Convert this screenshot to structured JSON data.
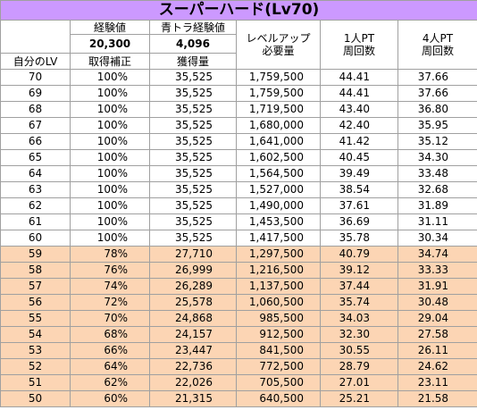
{
  "table": {
    "title": "スーパーハード(Lv70)",
    "header": {
      "exp": "経験値",
      "exp_value": "20,300",
      "blue_exp": "青トラ経験値",
      "blue_exp_value": "4,096",
      "levelup": "レベルアップ\n必要量",
      "solo": "1人PT\n周回数",
      "party": "4人PT\n周回数",
      "my_lv": "自分のLV",
      "bonus": "取得補正",
      "gain": "獲得量"
    },
    "bands": [
      {
        "rows": [
          [
            "70",
            "100%",
            "35,525",
            "1,759,500",
            "44.41",
            "37.66"
          ],
          [
            "69",
            "100%",
            "35,525",
            "1,759,500",
            "44.41",
            "37.66"
          ],
          [
            "68",
            "100%",
            "35,525",
            "1,719,500",
            "43.40",
            "36.80"
          ],
          [
            "67",
            "100%",
            "35,525",
            "1,680,000",
            "42.40",
            "35.95"
          ],
          [
            "66",
            "100%",
            "35,525",
            "1,641,000",
            "41.42",
            "35.12"
          ],
          [
            "65",
            "100%",
            "35,525",
            "1,602,500",
            "40.45",
            "34.30"
          ],
          [
            "64",
            "100%",
            "35,525",
            "1,564,500",
            "39.49",
            "33.48"
          ],
          [
            "63",
            "100%",
            "35,525",
            "1,527,000",
            "38.54",
            "32.68"
          ],
          [
            "62",
            "100%",
            "35,525",
            "1,490,000",
            "37.61",
            "31.89"
          ],
          [
            "61",
            "100%",
            "35,525",
            "1,453,500",
            "36.69",
            "31.11"
          ],
          [
            "60",
            "100%",
            "35,525",
            "1,417,500",
            "35.78",
            "30.34"
          ]
        ]
      },
      {
        "rows": [
          [
            "59",
            "78%",
            "27,710",
            "1,297,500",
            "40.79",
            "34.74"
          ],
          [
            "58",
            "76%",
            "26,999",
            "1,216,500",
            "39.12",
            "33.33"
          ],
          [
            "57",
            "74%",
            "26,289",
            "1,137,500",
            "37.44",
            "31.91"
          ],
          [
            "56",
            "72%",
            "25,578",
            "1,060,500",
            "35.74",
            "30.48"
          ],
          [
            "55",
            "70%",
            "24,868",
            "985,500",
            "34.03",
            "29.04"
          ],
          [
            "54",
            "68%",
            "24,157",
            "912,500",
            "32.30",
            "27.58"
          ],
          [
            "53",
            "66%",
            "23,447",
            "841,500",
            "30.55",
            "26.11"
          ],
          [
            "52",
            "64%",
            "22,736",
            "772,500",
            "28.79",
            "24.62"
          ],
          [
            "51",
            "62%",
            "22,026",
            "705,500",
            "27.01",
            "23.11"
          ],
          [
            "50",
            "60%",
            "21,315",
            "640,500",
            "25.21",
            "21.58"
          ]
        ]
      }
    ]
  }
}
